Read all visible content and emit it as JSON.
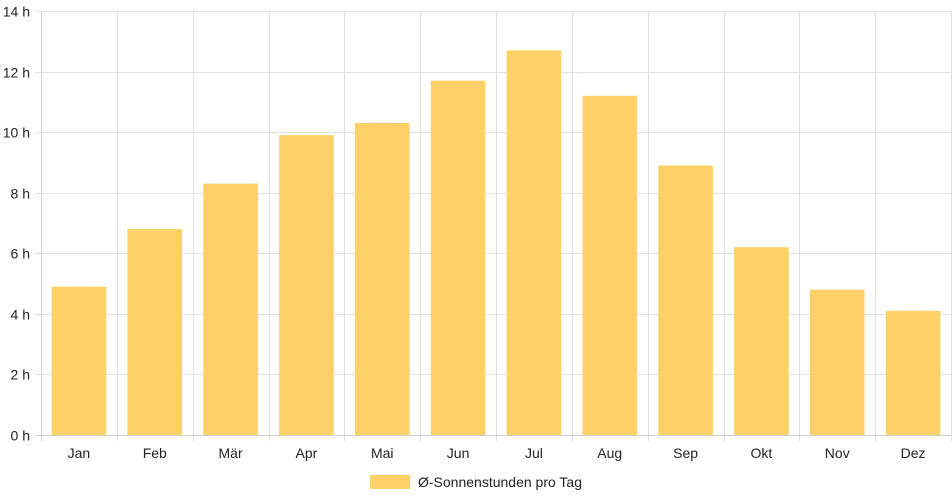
{
  "chart_data": {
    "type": "bar",
    "categories": [
      "Jan",
      "Feb",
      "Mär",
      "Apr",
      "Mai",
      "Jun",
      "Jul",
      "Aug",
      "Sep",
      "Okt",
      "Nov",
      "Dez"
    ],
    "series": [
      {
        "name": "Ø-Sonnenstunden pro Tag",
        "values": [
          4.9,
          6.8,
          8.3,
          9.9,
          10.3,
          11.7,
          12.7,
          11.2,
          8.9,
          6.2,
          4.8,
          4.1
        ],
        "color": "#fdd068"
      }
    ],
    "y_ticks": [
      "0 h",
      "2 h",
      "4 h",
      "6 h",
      "8 h",
      "10 h",
      "12 h",
      "14 h"
    ],
    "ylim": [
      0,
      14
    ],
    "y_step": 2,
    "title": "",
    "xlabel": "",
    "ylabel": "",
    "grid": true,
    "legend_position": "bottom"
  },
  "colors": {
    "bar": "#fdd068",
    "grid": "#e1e1e1",
    "text": "#222222"
  }
}
